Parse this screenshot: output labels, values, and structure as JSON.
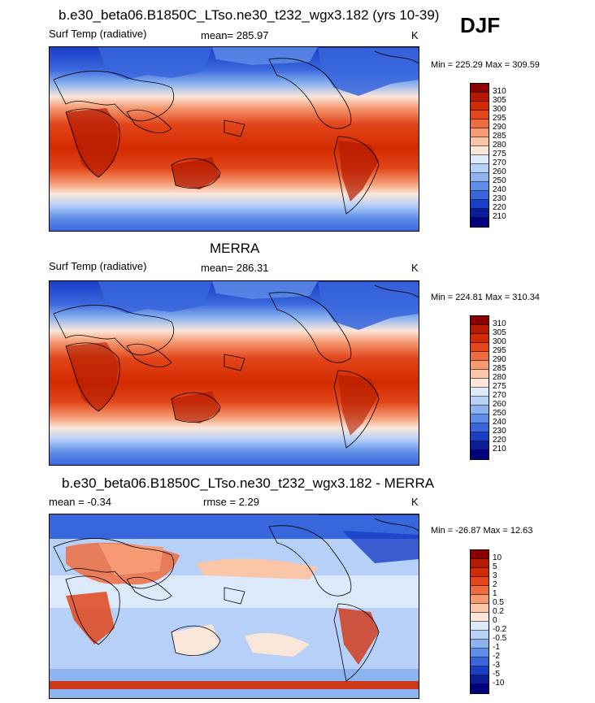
{
  "season": "DJF",
  "panels": [
    {
      "title": "b.e30_beta06.B1850C_LTso.ne30_t232_wgx3.182 (yrs 10-39)",
      "left_label": "Surf Temp (radiative)",
      "center_label": "mean= 285.97",
      "units": "K",
      "minmax": "Min = 225.29 Max = 309.59",
      "colorbar": {
        "labels": [
          "310",
          "305",
          "300",
          "295",
          "290",
          "285",
          "280",
          "275",
          "270",
          "260",
          "250",
          "240",
          "230",
          "220",
          "210"
        ],
        "colors": [
          "#8c0000",
          "#b31a00",
          "#d32a00",
          "#e2461a",
          "#ee6d3e",
          "#f59a72",
          "#fbc6a8",
          "#fbe7da",
          "#dce9fb",
          "#b7d0f8",
          "#8db3f0",
          "#5f8fe8",
          "#3866dc",
          "#1a3fc7",
          "#0a1e9a",
          "#000080"
        ]
      }
    },
    {
      "title": "MERRA",
      "left_label": "Surf Temp (radiative)",
      "center_label": "mean= 286.31",
      "units": "K",
      "minmax": "Min = 224.81 Max = 310.34",
      "colorbar": {
        "labels": [
          "310",
          "305",
          "300",
          "295",
          "290",
          "285",
          "280",
          "275",
          "270",
          "260",
          "250",
          "240",
          "230",
          "220",
          "210"
        ],
        "colors": [
          "#8c0000",
          "#b31a00",
          "#d32a00",
          "#e2461a",
          "#ee6d3e",
          "#f59a72",
          "#fbc6a8",
          "#fbe7da",
          "#dce9fb",
          "#b7d0f8",
          "#8db3f0",
          "#5f8fe8",
          "#3866dc",
          "#1a3fc7",
          "#0a1e9a",
          "#000080"
        ]
      }
    },
    {
      "title": "b.e30_beta06.B1850C_LTso.ne30_t232_wgx3.182 - MERRA",
      "left_label": "mean =  -0.34",
      "center_label": "rmse =   2.29",
      "units": "K",
      "minmax": "Min = -26.87 Max =  12.63",
      "colorbar": {
        "labels": [
          "10",
          "5",
          "3",
          "2",
          "1",
          "0.5",
          "0.2",
          "0",
          "-0.2",
          "-0.5",
          "-1",
          "-2",
          "-3",
          "-5",
          "-10"
        ],
        "colors": [
          "#8c0000",
          "#b31a00",
          "#d32a00",
          "#e2461a",
          "#ee6d3e",
          "#f59a72",
          "#fbc6a8",
          "#fbe7da",
          "#dce9fb",
          "#b7d0f8",
          "#8db3f0",
          "#5f8fe8",
          "#3866dc",
          "#1a3fc7",
          "#0a1e9a",
          "#000080"
        ]
      }
    }
  ]
}
